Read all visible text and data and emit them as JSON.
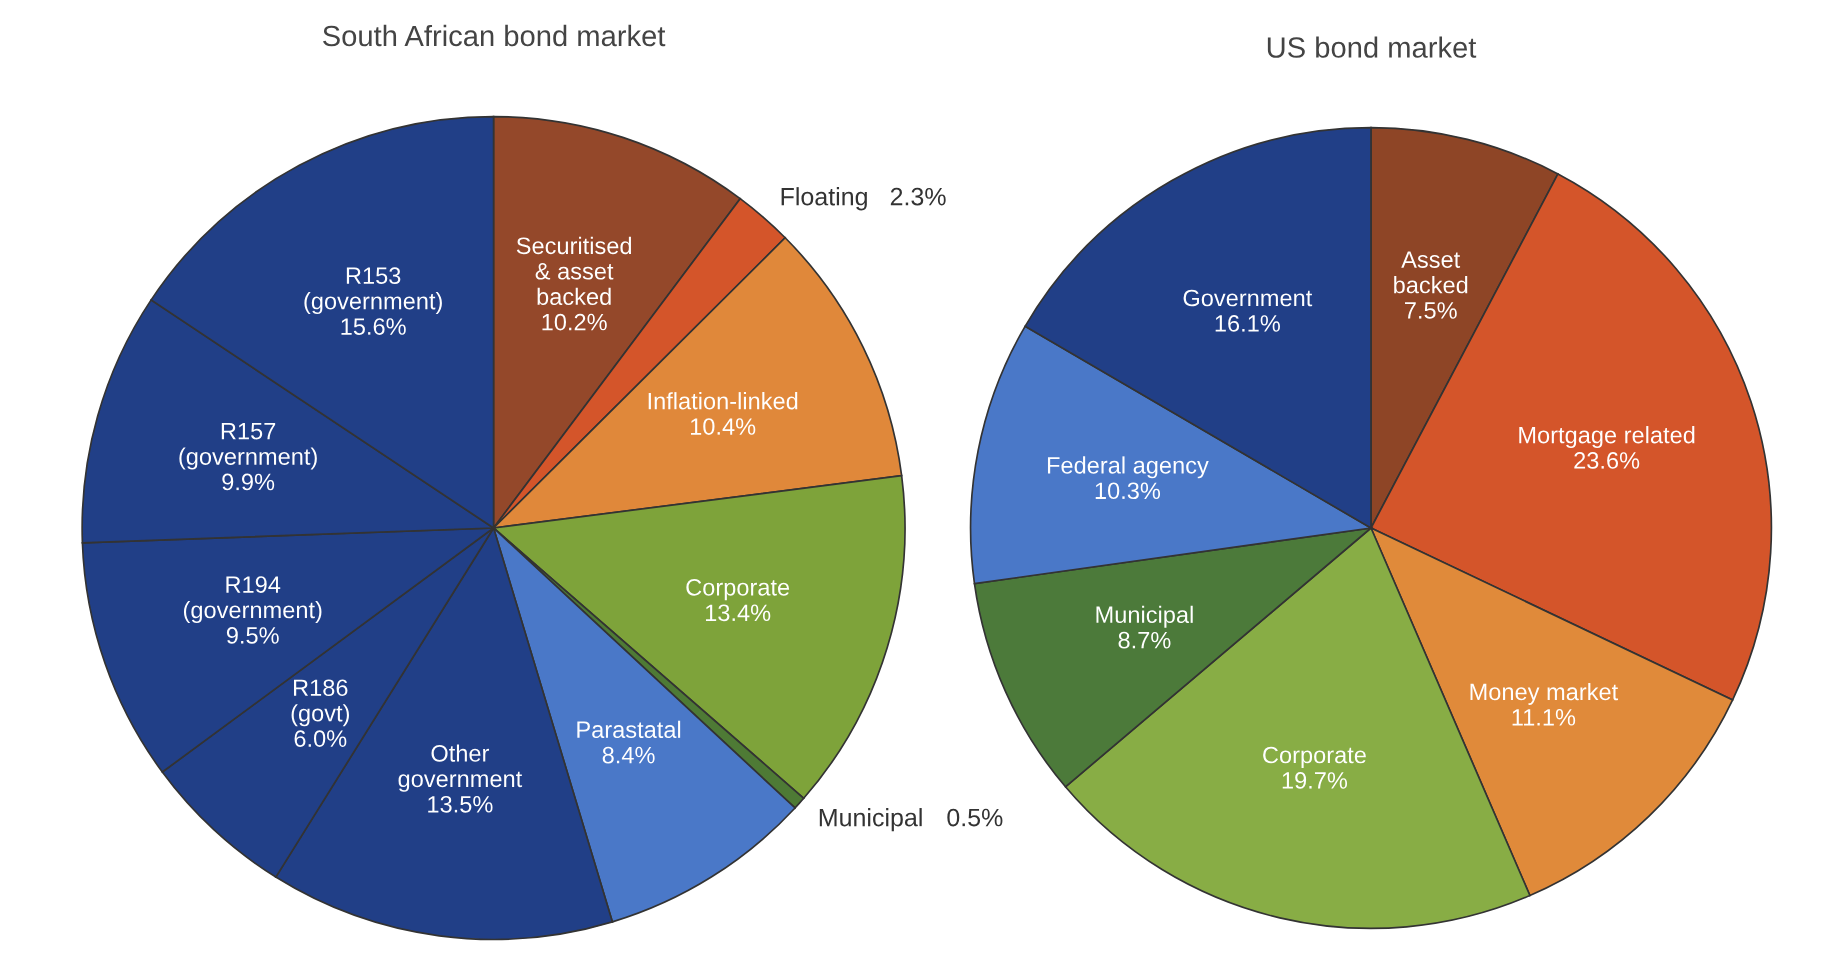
{
  "chart_data": [
    {
      "type": "pie",
      "title": "South African bond market",
      "categories": [
        "Securitised\n& asset\nbacked",
        "Floating",
        "Inflation-linked",
        "Corporate",
        "Municipal",
        "Parastatal",
        "Other\ngovernment",
        "R186\n(govt)",
        "R194\n(government)",
        "R157\n(government)",
        "R153\n(government)"
      ],
      "values": [
        10.2,
        2.3,
        10.4,
        13.4,
        0.5,
        8.4,
        13.5,
        6.0,
        9.5,
        9.9,
        15.6
      ],
      "value_labels": [
        "10.2%",
        "2.3%",
        "10.4%",
        "13.4%",
        "0.5%",
        "8.4%",
        "13.5%",
        "6.0%",
        "9.5%",
        "9.9%",
        "15.6%"
      ],
      "colors": [
        "#94482a",
        "#d4552a",
        "#e0883a",
        "#7ea33a",
        "#4e7a35",
        "#4a78c8",
        "#213f87",
        "#213f87",
        "#213f87",
        "#213f87",
        "#213f87"
      ]
    },
    {
      "type": "pie",
      "title": "US bond market",
      "categories": [
        "Asset\nbacked",
        "Mortgage related",
        "Money market",
        "Corporate",
        "Municipal",
        "Federal agency",
        "Government"
      ],
      "values": [
        7.5,
        23.6,
        11.1,
        19.7,
        8.7,
        10.3,
        16.1
      ],
      "value_labels": [
        "7.5%",
        "23.6%",
        "11.1%",
        "19.7%",
        "8.7%",
        "10.3%",
        "16.1%"
      ],
      "colors": [
        "#8e4526",
        "#d4552a",
        "#e08a3a",
        "#88ad45",
        "#4c7a3a",
        "#4a78c8",
        "#213f87"
      ]
    }
  ]
}
